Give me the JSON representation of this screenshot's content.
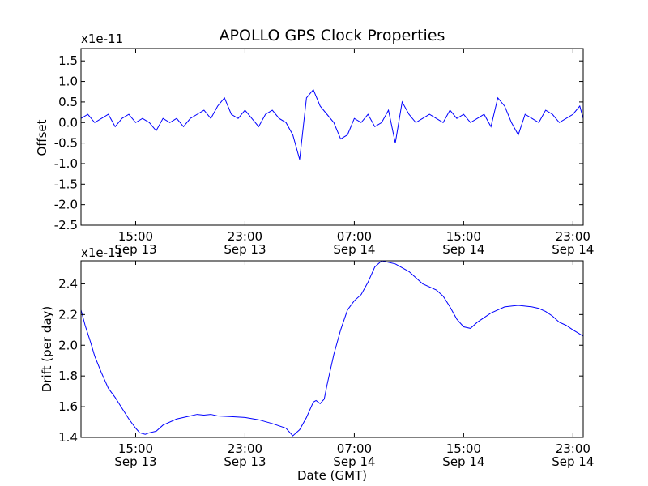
{
  "chart_data": [
    {
      "type": "line",
      "title": "APOLLO GPS Clock Properties",
      "ylabel": "Offset",
      "xlabel": "",
      "y_scale_label": "x1e-11",
      "x_unit": "hours from Sep 13 00:00 GMT",
      "xlim": [
        11,
        47.75
      ],
      "ylim": [
        -2.5,
        1.8
      ],
      "yticks": [
        -2.5,
        -2.0,
        -1.5,
        -1.0,
        -0.5,
        0.0,
        0.5,
        1.0,
        1.5
      ],
      "ytick_labels": [
        "-2.5",
        "-2.0",
        "-1.5",
        "-1.0",
        "-0.5",
        "0.0",
        "0.5",
        "1.0",
        "1.5"
      ],
      "xticks": [
        15,
        23,
        31,
        39,
        47
      ],
      "xtick_labels": [
        [
          "15:00",
          "Sep 13"
        ],
        [
          "23:00",
          "Sep 13"
        ],
        [
          "07:00",
          "Sep 14"
        ],
        [
          "15:00",
          "Sep 14"
        ],
        [
          "23:00",
          "Sep 14"
        ]
      ],
      "color": "#0000ff",
      "grid": false,
      "series": [
        {
          "x": [
            11.0,
            11.5,
            12.0,
            12.5,
            13.0,
            13.5,
            14.0,
            14.5,
            15.0,
            15.5,
            16.0,
            16.5,
            17.0,
            17.5,
            18.0,
            18.5,
            19.0,
            19.5,
            20.0,
            20.5,
            21.0,
            21.5,
            22.0,
            22.5,
            23.0,
            23.5,
            24.0,
            24.5,
            25.0,
            25.5,
            26.0,
            26.5,
            27.0,
            27.5,
            28.0,
            28.5,
            29.0,
            29.5,
            30.0,
            30.5,
            31.0,
            31.5,
            32.0,
            32.5,
            33.0,
            33.5,
            34.0,
            34.5,
            35.0,
            35.5,
            36.0,
            36.5,
            37.0,
            37.5,
            38.0,
            38.5,
            39.0,
            39.5,
            40.0,
            40.5,
            41.0,
            41.5,
            42.0,
            42.5,
            43.0,
            43.5,
            44.0,
            44.5,
            45.0,
            45.5,
            46.0,
            46.5,
            47.0,
            47.5,
            47.75
          ],
          "y": [
            0.1,
            0.2,
            0.0,
            0.1,
            0.2,
            -0.1,
            0.1,
            0.2,
            0.0,
            0.1,
            0.0,
            -0.2,
            0.1,
            0.0,
            0.1,
            -0.1,
            0.1,
            0.2,
            0.3,
            0.1,
            0.4,
            0.6,
            0.2,
            0.1,
            0.3,
            0.1,
            -0.1,
            0.2,
            0.3,
            0.1,
            0.0,
            -0.3,
            -0.9,
            0.6,
            0.8,
            0.4,
            0.2,
            0.0,
            -0.4,
            -0.3,
            0.1,
            0.0,
            0.2,
            -0.1,
            0.0,
            0.3,
            -0.5,
            0.5,
            0.2,
            0.0,
            0.1,
            0.2,
            0.1,
            0.0,
            0.3,
            0.1,
            0.2,
            0.0,
            0.1,
            0.2,
            -0.1,
            0.6,
            0.4,
            0.0,
            -0.3,
            0.2,
            0.1,
            0.0,
            0.3,
            0.2,
            0.0,
            0.1,
            0.2,
            0.4,
            0.1
          ]
        }
      ]
    },
    {
      "type": "line",
      "title": "",
      "ylabel": "Drift (per day)",
      "xlabel": "Date (GMT)",
      "y_scale_label": "x1e-11",
      "x_unit": "hours from Sep 13 00:00 GMT",
      "xlim": [
        11,
        47.75
      ],
      "ylim": [
        1.4,
        2.55
      ],
      "yticks": [
        1.4,
        1.6,
        1.8,
        2.0,
        2.2,
        2.4
      ],
      "ytick_labels": [
        "1.4",
        "1.6",
        "1.8",
        "2.0",
        "2.2",
        "2.4"
      ],
      "xticks": [
        15,
        23,
        31,
        39,
        47
      ],
      "xtick_labels": [
        [
          "15:00",
          "Sep 13"
        ],
        [
          "23:00",
          "Sep 13"
        ],
        [
          "07:00",
          "Sep 14"
        ],
        [
          "15:00",
          "Sep 14"
        ],
        [
          "23:00",
          "Sep 14"
        ]
      ],
      "color": "#0000ff",
      "grid": false,
      "series": [
        {
          "x": [
            11.0,
            11.3,
            11.7,
            12.0,
            12.5,
            13.0,
            13.5,
            14.0,
            14.5,
            15.0,
            15.3,
            15.7,
            16.0,
            16.5,
            17.0,
            18.0,
            19.0,
            19.5,
            20.0,
            20.5,
            21.0,
            22.0,
            23.0,
            24.0,
            25.0,
            26.0,
            26.5,
            27.0,
            27.5,
            28.0,
            28.2,
            28.5,
            28.8,
            29.0,
            29.5,
            30.0,
            30.5,
            31.0,
            31.5,
            32.0,
            32.5,
            33.0,
            34.0,
            35.0,
            35.5,
            36.0,
            37.0,
            37.5,
            38.0,
            38.5,
            39.0,
            39.5,
            40.0,
            41.0,
            42.0,
            43.0,
            44.0,
            44.5,
            45.0,
            45.5,
            46.0,
            46.5,
            47.0,
            47.75
          ],
          "y": [
            2.23,
            2.13,
            2.02,
            1.93,
            1.82,
            1.72,
            1.66,
            1.59,
            1.52,
            1.46,
            1.43,
            1.42,
            1.43,
            1.44,
            1.48,
            1.52,
            1.54,
            1.55,
            1.545,
            1.55,
            1.54,
            1.535,
            1.53,
            1.515,
            1.49,
            1.46,
            1.41,
            1.45,
            1.53,
            1.63,
            1.64,
            1.62,
            1.65,
            1.74,
            1.94,
            2.1,
            2.23,
            2.29,
            2.33,
            2.41,
            2.51,
            2.55,
            2.53,
            2.48,
            2.44,
            2.4,
            2.36,
            2.32,
            2.25,
            2.17,
            2.12,
            2.11,
            2.15,
            2.21,
            2.25,
            2.26,
            2.25,
            2.24,
            2.22,
            2.19,
            2.15,
            2.13,
            2.1,
            2.06
          ]
        }
      ]
    }
  ]
}
